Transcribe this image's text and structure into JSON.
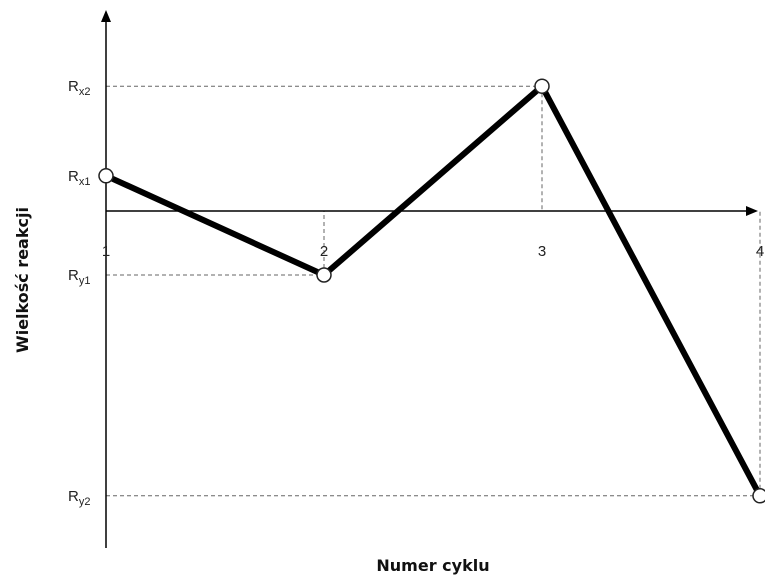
{
  "chart_data": {
    "type": "line",
    "xlabel": "Numer cyklu",
    "ylabel": "Wielkość reakcji",
    "x_ticks": [
      "1",
      "2",
      "3",
      "4"
    ],
    "y_ticks": [
      {
        "main": "R",
        "sub": "x2",
        "value": 1.95
      },
      {
        "main": "R",
        "sub": "x1",
        "value": 0.55
      },
      {
        "main": "R",
        "sub": "y1",
        "value": -1.0
      },
      {
        "main": "R",
        "sub": "y2",
        "value": -4.45
      }
    ],
    "x": [
      1,
      2,
      3,
      4
    ],
    "values": [
      0.55,
      -1.0,
      1.95,
      -4.45
    ],
    "xlim": [
      1,
      4
    ],
    "ylim": [
      -4.45,
      1.95
    ],
    "grid": false,
    "guide_lines": "dashed to axes",
    "colors": {
      "line": "#000000",
      "guide": "#666666",
      "marker_fill": "#ffffff"
    }
  }
}
